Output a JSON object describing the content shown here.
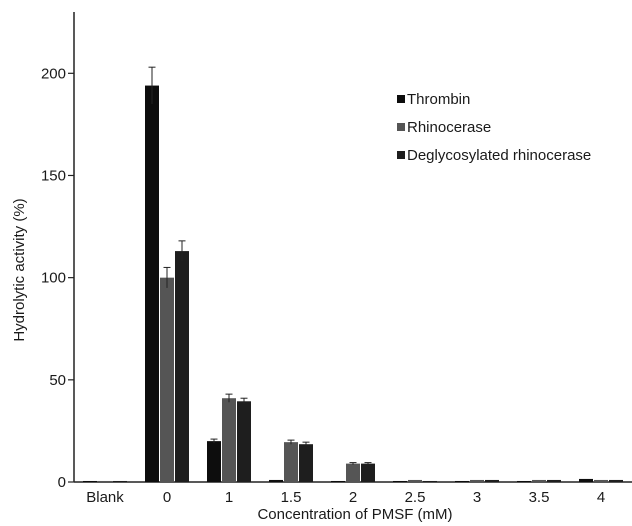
{
  "chart_data": {
    "type": "bar",
    "title": "",
    "xlabel": "Concentration of PMSF (mM)",
    "ylabel": "Hydrolytic activity (%)",
    "categories": [
      "Blank",
      "0",
      "1",
      "1.5",
      "2",
      "2.5",
      "3",
      "3.5",
      "4"
    ],
    "ylim": [
      0,
      230
    ],
    "yticks": [
      0,
      50,
      100,
      150,
      200
    ],
    "grid": false,
    "legend_position": "top-right",
    "series": [
      {
        "name": "Thrombin",
        "color": "#0d0d0d",
        "values": [
          0.5,
          194,
          20,
          1,
          0.5,
          0.5,
          0.5,
          0.5,
          1.5
        ],
        "errors": [
          0,
          9,
          1,
          0,
          0,
          0,
          0,
          0,
          0
        ]
      },
      {
        "name": "Rhinocerase",
        "color": "#555555",
        "values": [
          0.5,
          100,
          41,
          19.5,
          9,
          1,
          1,
          1,
          1
        ],
        "errors": [
          0,
          5,
          2,
          1,
          0.5,
          0,
          0,
          0,
          0
        ]
      },
      {
        "name": "Deglycosylated rhinocerase",
        "color": "#1e1e1e",
        "values": [
          0.5,
          113,
          39.5,
          18.5,
          9,
          0.5,
          1,
          1,
          1
        ],
        "errors": [
          0,
          5,
          1.5,
          1,
          0.5,
          0,
          0,
          0,
          0
        ]
      }
    ]
  }
}
